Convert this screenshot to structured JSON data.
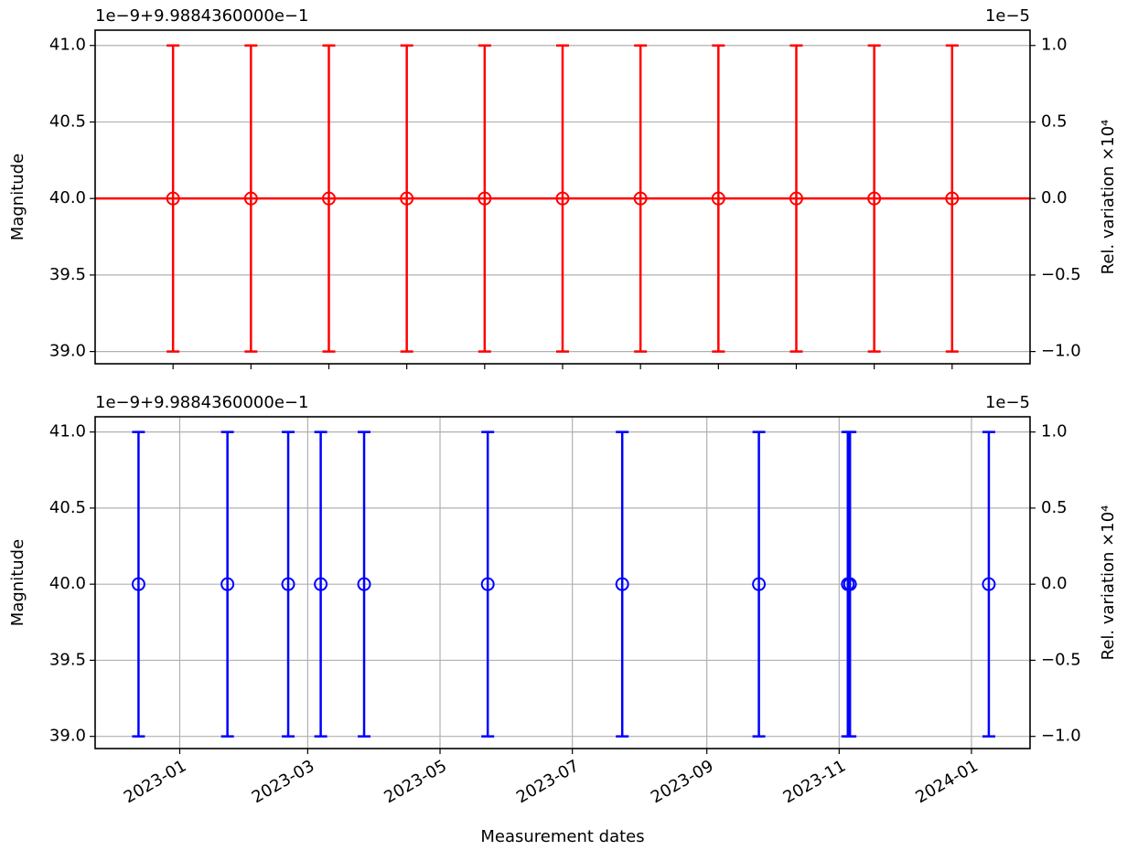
{
  "chart_data": [
    {
      "type": "errorbar",
      "offset_text": "1e−9+9.9884360000e−1",
      "y2_offset_text": "1e−5",
      "ylabel": "Magnitude",
      "y2label": "Rel. variation ×10⁴",
      "x": [
        0,
        1,
        2,
        3,
        4,
        5,
        6,
        7,
        8,
        9,
        10
      ],
      "values": [
        40.0,
        40.0,
        40.0,
        40.0,
        40.0,
        40.0,
        40.0,
        40.0,
        40.0,
        40.0,
        40.0
      ],
      "errors": [
        1.0,
        1.0,
        1.0,
        1.0,
        1.0,
        1.0,
        1.0,
        1.0,
        1.0,
        1.0,
        1.0
      ],
      "hline": 40.0,
      "color": "#ff0000",
      "xlim": [
        -1,
        11
      ],
      "xticks": [
        0,
        1,
        2,
        3,
        4,
        5,
        6,
        7,
        8,
        9,
        10
      ],
      "xtick_labels_shown": false,
      "ylim": [
        38.92,
        41.1
      ],
      "yticks": [
        {
          "value": 39,
          "label": "39.0"
        },
        {
          "value": 39.5,
          "label": "39.5"
        },
        {
          "value": 40,
          "label": "40.0"
        },
        {
          "value": 40.5,
          "label": "40.5"
        },
        {
          "value": 41,
          "label": "41.0"
        }
      ],
      "y2lim": [
        -1.08,
        1.1
      ],
      "y2ticks": [
        {
          "value": -1,
          "label": "−1.0"
        },
        {
          "value": -0.5,
          "label": "−0.5"
        },
        {
          "value": 0,
          "label": "0.0"
        },
        {
          "value": 0.5,
          "label": "0.5"
        },
        {
          "value": 1,
          "label": "1.0"
        }
      ],
      "grid": "y"
    },
    {
      "type": "errorbar",
      "offset_text": "1e−9+9.9884360000e−1",
      "y2_offset_text": "1e−5",
      "ylabel": "Magnitude",
      "y2label": "Rel. variation ×10⁴",
      "xlabel": "Measurement dates",
      "x": [
        "2022-12-13",
        "2023-01-23",
        "2023-02-20",
        "2023-03-07",
        "2023-03-27",
        "2023-05-23",
        "2023-07-24",
        "2023-09-25",
        "2023-11-05",
        "2023-11-06",
        "2024-01-09"
      ],
      "values": [
        40.0,
        40.0,
        40.0,
        40.0,
        40.0,
        40.0,
        40.0,
        40.0,
        40.0,
        40.0,
        40.0
      ],
      "errors": [
        1.0,
        1.0,
        1.0,
        1.0,
        1.0,
        1.0,
        1.0,
        1.0,
        1.0,
        1.0,
        1.0
      ],
      "color": "#0000ff",
      "xlim": [
        "2022-11-23",
        "2024-01-28"
      ],
      "xticks": [
        {
          "value": "2023-01-01",
          "label": "2023-01"
        },
        {
          "value": "2023-03-01",
          "label": "2023-03"
        },
        {
          "value": "2023-05-01",
          "label": "2023-05"
        },
        {
          "value": "2023-07-01",
          "label": "2023-07"
        },
        {
          "value": "2023-09-01",
          "label": "2023-09"
        },
        {
          "value": "2023-11-01",
          "label": "2023-11"
        },
        {
          "value": "2024-01-01",
          "label": "2024-01"
        }
      ],
      "ylim": [
        38.92,
        41.1
      ],
      "yticks": [
        {
          "value": 39,
          "label": "39.0"
        },
        {
          "value": 39.5,
          "label": "39.5"
        },
        {
          "value": 40,
          "label": "40.0"
        },
        {
          "value": 40.5,
          "label": "40.5"
        },
        {
          "value": 41,
          "label": "41.0"
        }
      ],
      "y2lim": [
        -1.08,
        1.1
      ],
      "y2ticks": [
        {
          "value": -1,
          "label": "−1.0"
        },
        {
          "value": -0.5,
          "label": "−0.5"
        },
        {
          "value": 0,
          "label": "0.0"
        },
        {
          "value": 0.5,
          "label": "0.5"
        },
        {
          "value": 1,
          "label": "1.0"
        }
      ],
      "grid": "both"
    }
  ]
}
